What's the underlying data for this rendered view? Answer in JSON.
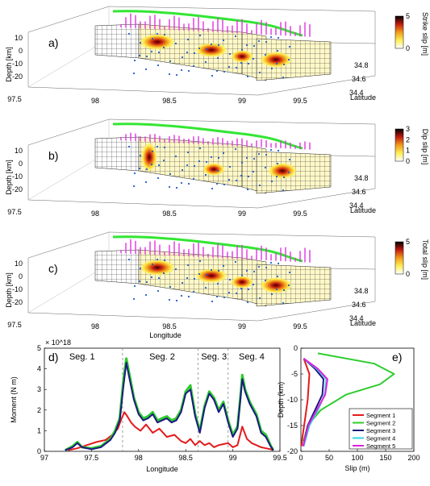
{
  "panels3d": [
    {
      "label": "a)",
      "colorbar_label": "Strike slip [m]",
      "cbar_max": 5,
      "cbar_ticks": [
        0,
        5
      ],
      "show_x_label": false
    },
    {
      "label": "b)",
      "colorbar_label": "Dip slip [m]",
      "cbar_max": 3,
      "cbar_ticks": [
        0,
        1,
        2,
        3
      ],
      "show_x_label": false
    },
    {
      "label": "c)",
      "colorbar_label": "Total slip [m]",
      "cbar_max": 5,
      "cbar_ticks": [
        0,
        5
      ],
      "show_x_label": true
    }
  ],
  "axes3d": {
    "depth_label": "Depth [km]",
    "depth_ticks": [
      "10",
      "0",
      "-10",
      "-20"
    ],
    "lon_ticks": [
      "97.5",
      "98",
      "98.5",
      "99",
      "99.5"
    ],
    "lat_ticks": [
      "34.4",
      "34.6",
      "34.8"
    ],
    "lon_label": "Longitude",
    "lat_label": "Latitude"
  },
  "chart_data": [
    {
      "type": "line",
      "panel_label": "d)",
      "xlabel": "Longitude",
      "ylabel": "Moment (N m)",
      "y_exponent": "× 10^18",
      "xlim": [
        97,
        99.5
      ],
      "ylim": [
        0,
        5
      ],
      "xticks": [
        97,
        97.5,
        98,
        98.5,
        99,
        99.5
      ],
      "yticks": [
        0,
        1,
        2,
        3,
        4,
        5
      ],
      "segment_labels": [
        "Seg. 1",
        "Seg. 2",
        "Seg. 3",
        "Seg. 4"
      ],
      "segment_boundaries": [
        97.83,
        98.63,
        98.95
      ],
      "series": [
        {
          "color": "#e41a1c",
          "x": [
            97.25,
            97.35,
            97.45,
            97.55,
            97.65,
            97.72,
            97.78,
            97.82,
            97.85,
            97.88,
            97.92,
            97.96,
            98.02,
            98.08,
            98.15,
            98.22,
            98.3,
            98.38,
            98.45,
            98.5,
            98.55,
            98.6,
            98.65,
            98.7,
            98.75,
            98.8,
            98.85,
            98.9,
            98.95,
            99.0,
            99.05,
            99.1,
            99.15,
            99.2,
            99.25,
            99.3,
            99.35,
            99.4,
            99.43
          ],
          "y": [
            0.05,
            0.15,
            0.3,
            0.45,
            0.55,
            0.8,
            1.1,
            1.6,
            1.9,
            1.7,
            1.4,
            1.2,
            1.0,
            1.3,
            0.9,
            1.1,
            0.7,
            0.8,
            0.5,
            0.4,
            0.6,
            0.3,
            0.5,
            0.3,
            0.4,
            0.2,
            0.3,
            0.35,
            0.4,
            0.2,
            0.3,
            1.2,
            0.6,
            0.4,
            0.3,
            0.2,
            0.15,
            0.1,
            0.05
          ]
        },
        {
          "color": "#2ecc2e",
          "x": [
            97.22,
            97.3,
            97.35,
            97.4,
            97.5,
            97.6,
            97.7,
            97.75,
            97.8,
            97.84,
            97.87,
            97.9,
            97.95,
            98.0,
            98.05,
            98.1,
            98.15,
            98.2,
            98.25,
            98.3,
            98.35,
            98.4,
            98.45,
            98.5,
            98.55,
            98.6,
            98.65,
            98.7,
            98.75,
            98.8,
            98.85,
            98.9,
            98.95,
            99.0,
            99.05,
            99.08,
            99.1,
            99.13,
            99.18,
            99.25,
            99.3,
            99.35,
            99.4,
            99.43
          ],
          "y": [
            0.05,
            0.25,
            0.45,
            0.2,
            0.15,
            0.25,
            0.6,
            1.0,
            1.6,
            3.5,
            4.5,
            3.8,
            2.6,
            1.9,
            1.6,
            1.7,
            1.9,
            1.5,
            1.6,
            1.7,
            1.5,
            1.6,
            2.0,
            2.9,
            3.2,
            1.8,
            1.0,
            2.2,
            2.9,
            2.6,
            2.0,
            2.4,
            1.5,
            0.8,
            1.2,
            2.6,
            3.7,
            3.0,
            2.4,
            1.8,
            1.0,
            0.8,
            0.3,
            0.05
          ]
        },
        {
          "color": "#1a1a80",
          "x": [
            97.22,
            97.3,
            97.35,
            97.4,
            97.5,
            97.6,
            97.7,
            97.75,
            97.8,
            97.84,
            97.87,
            97.9,
            97.95,
            98.0,
            98.05,
            98.1,
            98.15,
            98.2,
            98.25,
            98.3,
            98.35,
            98.4,
            98.45,
            98.5,
            98.55,
            98.6,
            98.65,
            98.7,
            98.75,
            98.8,
            98.85,
            98.9,
            98.95,
            99.0,
            99.05,
            99.08,
            99.1,
            99.13,
            99.18,
            99.25,
            99.3,
            99.35,
            99.4,
            99.43
          ],
          "y": [
            0.05,
            0.2,
            0.4,
            0.2,
            0.1,
            0.2,
            0.55,
            0.9,
            1.5,
            3.2,
            4.3,
            3.6,
            2.5,
            1.8,
            1.5,
            1.6,
            1.8,
            1.4,
            1.5,
            1.6,
            1.4,
            1.5,
            1.9,
            2.8,
            3.0,
            1.7,
            0.9,
            2.1,
            2.8,
            2.5,
            1.9,
            2.3,
            1.4,
            0.7,
            1.1,
            2.5,
            3.5,
            2.9,
            2.3,
            1.7,
            0.9,
            0.7,
            0.25,
            0.05
          ]
        }
      ]
    },
    {
      "type": "line",
      "panel_label": "e)",
      "xlabel": "Slip (m)",
      "ylabel": "Depth (km)",
      "xlim": [
        0,
        200
      ],
      "ylim": [
        -20,
        0
      ],
      "xticks": [
        0,
        50,
        100,
        150,
        200
      ],
      "yticks": [
        0,
        -5,
        -10,
        -15,
        -20
      ],
      "series": [
        {
          "name": "Segment 1",
          "color": "#e41a1c",
          "x": [
            5,
            15,
            12,
            7,
            3,
            1
          ],
          "y": [
            -2,
            -5,
            -10,
            -14,
            -17,
            -19
          ]
        },
        {
          "name": "Segment 2",
          "color": "#2ecc2e",
          "x": [
            30,
            130,
            165,
            140,
            80,
            35,
            12,
            5
          ],
          "y": [
            -1,
            -3,
            -5,
            -7,
            -9,
            -12,
            -15,
            -18
          ]
        },
        {
          "name": "Segment 3",
          "color": "#1a1a80",
          "x": [
            5,
            25,
            40,
            38,
            25,
            12,
            4
          ],
          "y": [
            -2,
            -4,
            -6,
            -9,
            -12,
            -15,
            -19
          ]
        },
        {
          "name": "Segment 4",
          "color": "#33d6e6",
          "x": [
            5,
            28,
            45,
            42,
            30,
            15,
            5
          ],
          "y": [
            -2,
            -4,
            -6,
            -9,
            -12,
            -15,
            -19
          ]
        },
        {
          "name": "Segment 5",
          "color": "#dd22dd",
          "x": [
            5,
            30,
            47,
            43,
            28,
            13,
            4
          ],
          "y": [
            -2,
            -4,
            -6,
            -9,
            -12,
            -15,
            -19
          ]
        }
      ]
    }
  ]
}
